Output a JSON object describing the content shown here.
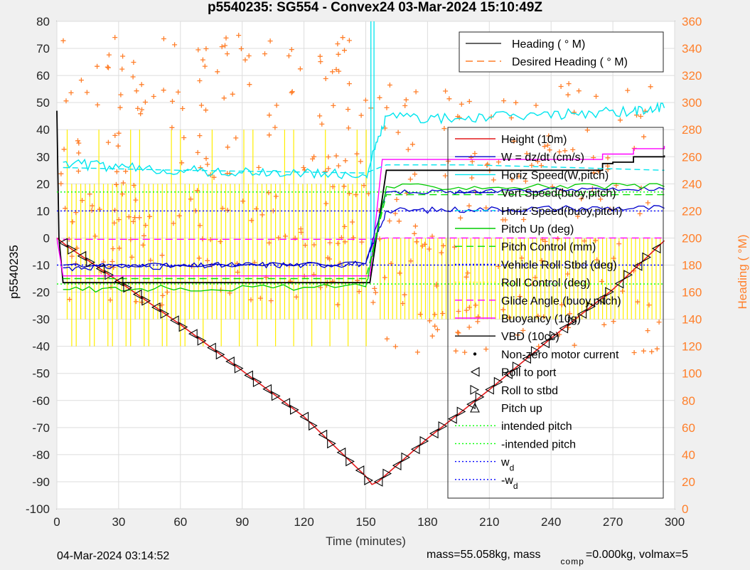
{
  "chart_data": {
    "type": "line",
    "title": "p5540235: SG554 - Convex24 03-Mar-2024 15:10:49Z",
    "xlabel": "Time (minutes)",
    "ylabel": "p5540235",
    "y2label": "Heading (  °M)",
    "xlim": [
      0,
      300
    ],
    "ylim": [
      -100,
      80
    ],
    "y2lim": [
      0,
      360
    ],
    "xticks": [
      "0",
      "30",
      "60",
      "90",
      "120",
      "150",
      "180",
      "210",
      "240",
      "270",
      "300"
    ],
    "yticks": [
      "80",
      "70",
      "60",
      "50",
      "40",
      "30",
      "20",
      "10",
      "0",
      "-10",
      "-20",
      "-30",
      "-40",
      "-50",
      "-60",
      "-70",
      "-80",
      "-90",
      "-100"
    ],
    "y2ticks": [
      "360",
      "340",
      "320",
      "300",
      "280",
      "260",
      "240",
      "220",
      "200",
      "180",
      "160",
      "140",
      "120",
      "100",
      "80",
      "60",
      "40",
      "20",
      "0"
    ],
    "grid": true,
    "legend_top": [
      "Heading (  ° M)",
      "Desired Heading (    ° M)"
    ],
    "legend_main": [
      "Height (10m)",
      "W = dz/dt (cm/s)",
      "Horiz Speed(W,pitch)",
      "Vert Speed(buoy,pitch)",
      "Horiz Speed(buoy,pitch)",
      "Pitch Up (deg)",
      "Pitch Control (mm)",
      "Vehicle Roll Stbd (deg)",
      "Roll Control (deg)",
      "Glide Angle (buoy,pitch)",
      "Buoyancy (10g)",
      "VBD (10cc)",
      "Non-zero motor current",
      "Roll to port",
      "Roll to stbd",
      "Pitch up",
      "intended pitch",
      "-intended pitch",
      "w",
      "-w"
    ],
    "legend_sub": "d",
    "colors": {
      "height": "#e41a1c",
      "w": "#0000cc",
      "horiz_w": "#00e5ee",
      "vert_buoy": "#0000cc",
      "horiz_buoy": "#00e5ee",
      "pitch": "#00cc00",
      "pitch_control": "#00dd00",
      "roll": "#0000ff",
      "roll_control": "#ffff00",
      "glide": "#ff00ff",
      "buoyancy": "#ff00ff",
      "vbd": "#000000",
      "heading": "#ff7f2a",
      "intended": "#00ff00",
      "wd": "#0000ff"
    },
    "series": [
      {
        "name": "Height (10m)",
        "x": [
          0,
          5,
          30,
          60,
          90,
          120,
          150,
          153,
          156,
          180,
          210,
          240,
          270,
          295
        ],
        "y": [
          0,
          -3,
          -16,
          -32,
          -49,
          -66,
          -88,
          -91,
          -90,
          -74,
          -56,
          -37,
          -19,
          -1
        ]
      },
      {
        "name": "VBD (10cc)",
        "x": [
          0,
          1,
          3,
          152,
          160,
          230,
          265,
          270,
          280,
          295
        ],
        "y": [
          47,
          0,
          -16.5,
          -16.5,
          25,
          25,
          27.5,
          28,
          30,
          30.5
        ]
      },
      {
        "name": "Buoyancy (10g)",
        "x": [
          0,
          3,
          152,
          158,
          230,
          265,
          280,
          295
        ],
        "y": [
          0,
          -14,
          -14,
          29,
          29,
          31,
          33,
          34
        ]
      },
      {
        "name": "Glide Angle (buoy,pitch)",
        "x": [
          3,
          152,
          160,
          295
        ],
        "y": [
          -0.5,
          -0.5,
          0,
          0
        ]
      },
      {
        "name": "intended pitch",
        "x": [
          0,
          295
        ],
        "y": [
          17,
          17
        ]
      },
      {
        "name": "-intended pitch",
        "x": [
          0,
          295
        ],
        "y": [
          -17,
          -17
        ]
      },
      {
        "name": "w",
        "x": [
          0,
          295
        ],
        "y": [
          10,
          10
        ]
      },
      {
        "name": "-w",
        "x": [
          0,
          295
        ],
        "y": [
          -10,
          -10
        ]
      },
      {
        "name": "Horiz Speed(W,pitch)",
        "x": [
          3,
          30,
          60,
          90,
          120,
          150,
          160,
          190,
          220,
          250,
          280,
          295
        ],
        "y": [
          28,
          26,
          25,
          24,
          24,
          23,
          45,
          44,
          45,
          46,
          47,
          48
        ]
      },
      {
        "name": "Horiz Speed(buoy,pitch)",
        "x": [
          3,
          60,
          150,
          160,
          200,
          250,
          295
        ],
        "y": [
          26,
          25,
          24,
          27,
          27,
          26,
          25
        ]
      },
      {
        "name": "W = dz/dt (cm/s)",
        "x": [
          3,
          30,
          60,
          90,
          120,
          150,
          160,
          200,
          250,
          295
        ],
        "y": [
          -11,
          -10.5,
          -10.5,
          -10,
          -10,
          -9.5,
          10,
          10.5,
          11,
          11
        ]
      },
      {
        "name": "Vert Speed(buoy,pitch)",
        "x": [
          3,
          60,
          150,
          160,
          200,
          250,
          295
        ],
        "y": [
          -10,
          -10,
          -9.5,
          17,
          17,
          18,
          18
        ]
      },
      {
        "name": "Pitch Up (deg)",
        "x": [
          3,
          60,
          150,
          160,
          230,
          295
        ],
        "y": [
          -19,
          -18.5,
          -18,
          19,
          19,
          19
        ]
      },
      {
        "name": "Pitch Control (mm)",
        "x": [
          3,
          150,
          160,
          295
        ],
        "y": [
          -15,
          -15,
          16,
          16
        ]
      }
    ]
  },
  "footer": {
    "date": "04-Mar-2024 03:14:52",
    "mass_a": "mass=55.058kg, mass",
    "mass_sub": "comp",
    "mass_b": "=0.000kg, volmax=5"
  }
}
